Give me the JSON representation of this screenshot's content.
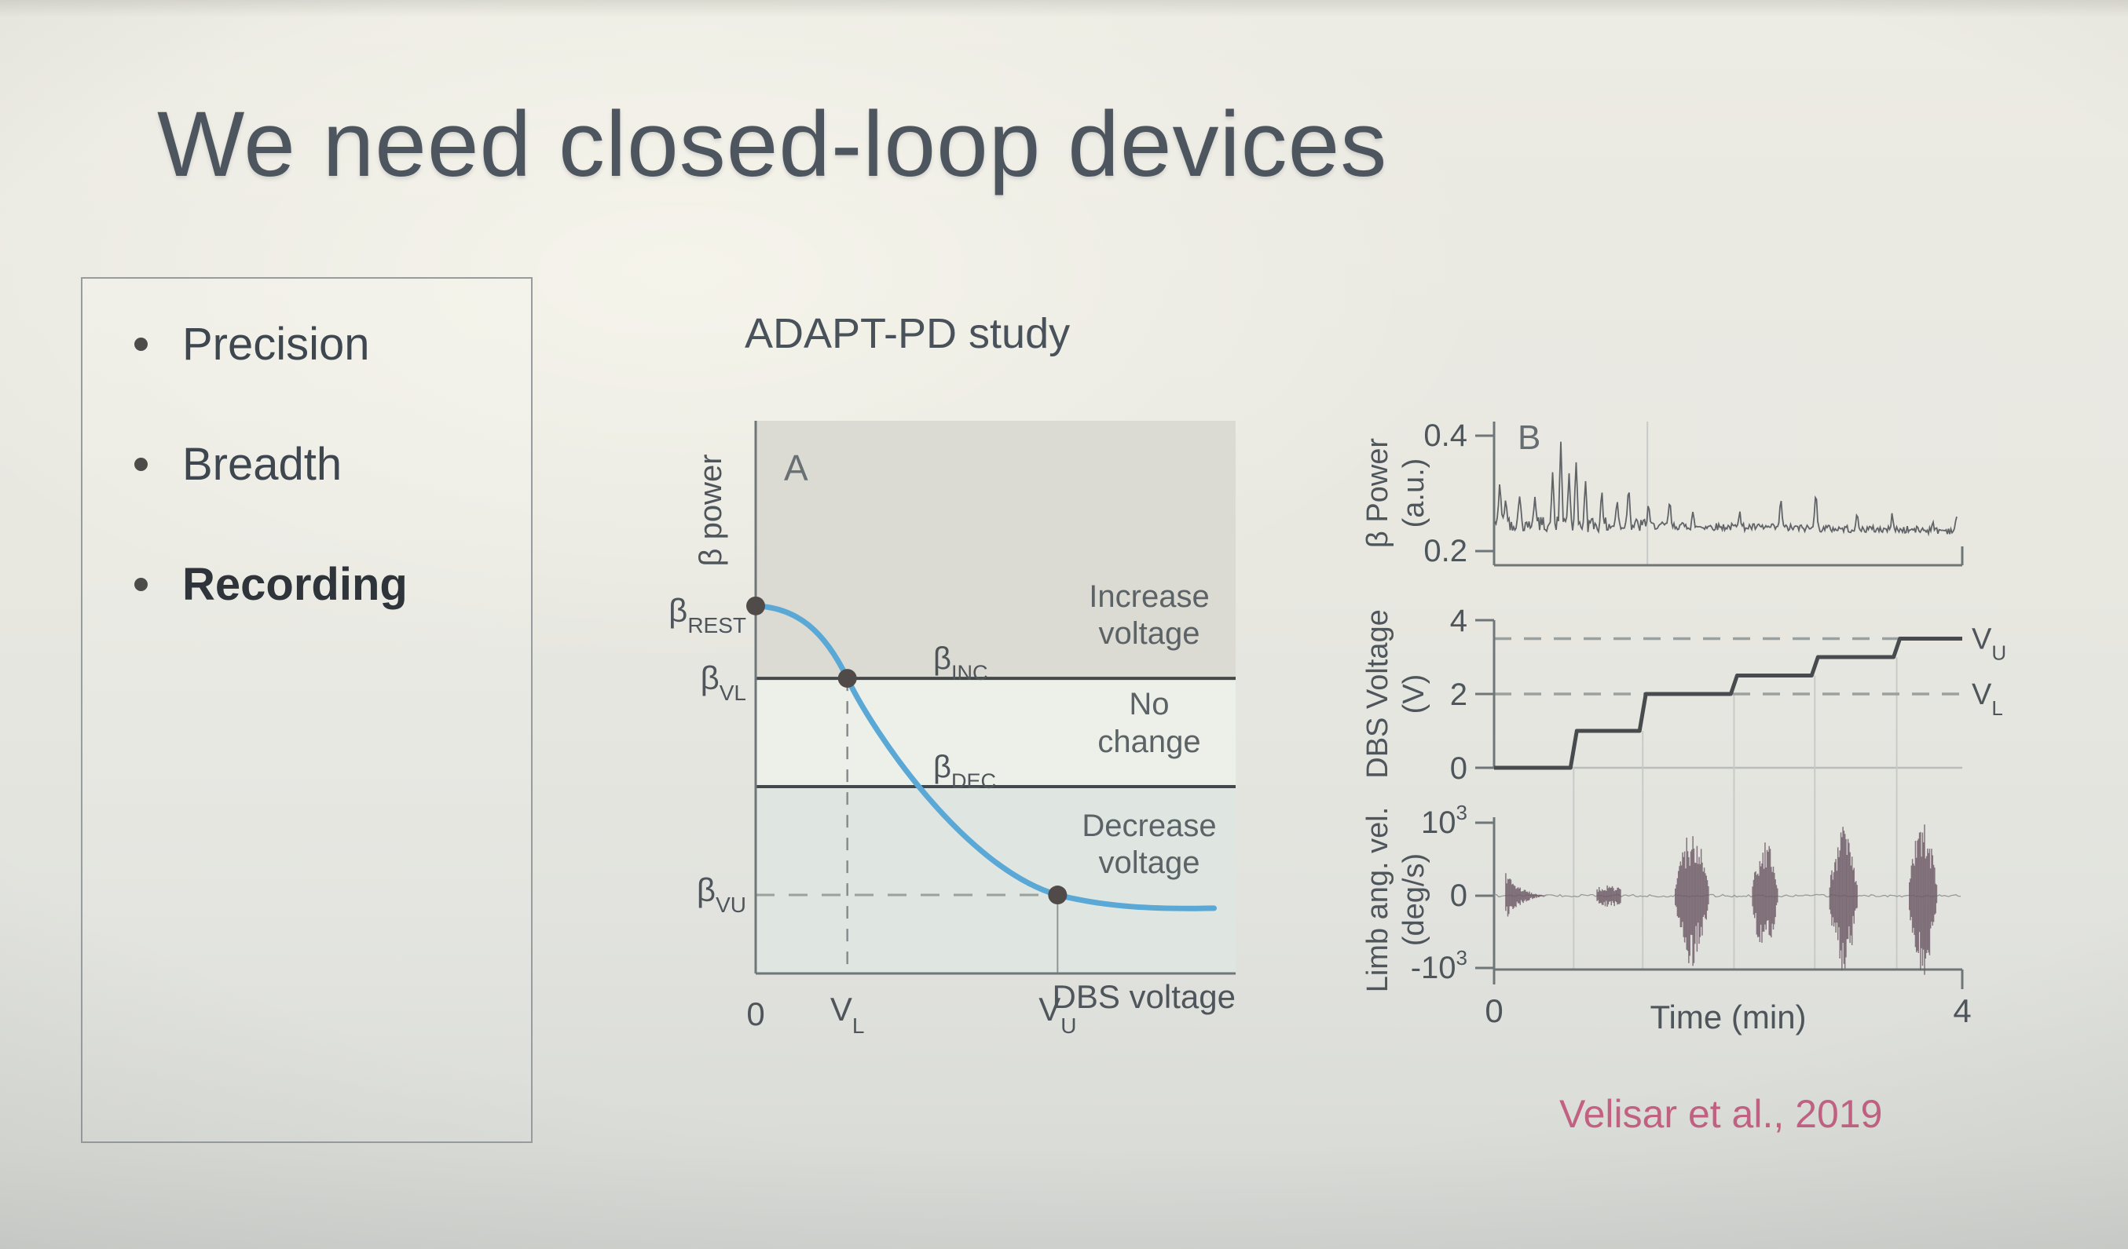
{
  "slide": {
    "title": "We need closed-loop devices"
  },
  "bullets": {
    "items": [
      {
        "label": "Precision"
      },
      {
        "label": "Breadth"
      },
      {
        "label": "Recording"
      }
    ]
  },
  "figure": {
    "heading": "ADAPT-PD study",
    "citation": "Velisar et al., 2019"
  },
  "colors": {
    "accent_blue": "#5aa8d6",
    "ink_dark": "#474b4e",
    "axis_grey": "#6f7678",
    "label_grey": "#4e565c",
    "region_top": "#dbdad3",
    "region_mid": "#edefe9",
    "region_bottom": "#dfe5e0",
    "dash_grey": "#9aa19e",
    "gridline": "#c7cbc8",
    "trace_grey": "#585d61",
    "burst": "#6e5b67",
    "point_dark": "#504b49",
    "citation_pink": "#c26183"
  },
  "chart_data": [
    {
      "id": "panel_a",
      "type": "line",
      "panel_label": "A",
      "ylabel": "β power",
      "xlabel": "DBS voltage",
      "x_ticks": [
        {
          "base": "0"
        },
        {
          "base": "V",
          "sub": "L"
        },
        {
          "base": "V",
          "sub": "U"
        }
      ],
      "y_labels": [
        {
          "base": "β",
          "sub": "REST"
        },
        {
          "base": "β",
          "sub": "VL"
        },
        {
          "base": "β",
          "sub": "VU"
        }
      ],
      "threshold_labels": [
        {
          "base": "β",
          "sub": "INC"
        },
        {
          "base": "β",
          "sub": "DEC"
        }
      ],
      "regions": [
        [
          "Increase",
          "voltage"
        ],
        [
          "No",
          "change"
        ],
        [
          "Decrease",
          "voltage"
        ]
      ],
      "norm": {
        "beta_rest_y": 0.335,
        "beta_inc_y": 0.466,
        "beta_dec_y": 0.662,
        "beta_vu_y": 0.858,
        "v_l_x": 0.191,
        "v_u_x": 0.629,
        "curve_end": [
          0.955,
          0.882
        ]
      },
      "curve_points": [
        [
          0,
          0.335
        ],
        [
          0.191,
          0.466
        ],
        [
          0.629,
          0.858
        ]
      ]
    },
    {
      "id": "panel_b_beta",
      "type": "line",
      "panel_label": "B",
      "ylabel_lines": [
        "β Power",
        "(a.u.)"
      ],
      "y_ticks": [
        0.4,
        0.2
      ],
      "x_range": [
        0,
        4
      ],
      "baseline": {
        "start": 0.2485,
        "end": 0.236
      },
      "noise": {
        "early": 0.013,
        "late": 0.0065,
        "early_until": 1.3
      },
      "spikes": [
        [
          0.05,
          0.33
        ],
        [
          0.1,
          0.3
        ],
        [
          0.22,
          0.31
        ],
        [
          0.35,
          0.3
        ],
        [
          0.5,
          0.34
        ],
        [
          0.57,
          0.4
        ],
        [
          0.64,
          0.34
        ],
        [
          0.7,
          0.37
        ],
        [
          0.78,
          0.33
        ],
        [
          0.92,
          0.31
        ],
        [
          1.05,
          0.3
        ],
        [
          1.15,
          0.32
        ],
        [
          1.32,
          0.29
        ],
        [
          1.5,
          0.3
        ],
        [
          1.7,
          0.28
        ],
        [
          2.1,
          0.27
        ],
        [
          2.45,
          0.3
        ],
        [
          2.75,
          0.31
        ],
        [
          3.1,
          0.27
        ],
        [
          3.4,
          0.27
        ],
        [
          3.75,
          0.26
        ],
        [
          3.95,
          0.27
        ]
      ],
      "gridline_times": [
        1.31
      ]
    },
    {
      "id": "panel_b_voltage",
      "type": "step",
      "ylabel_lines": [
        "DBS Voltage",
        "(V)"
      ],
      "y_ticks": [
        4,
        2,
        0
      ],
      "step_times": [
        0,
        0.68,
        1.27,
        2.05,
        2.74,
        3.44
      ],
      "step_levels": [
        0,
        1,
        2,
        2.5,
        3,
        3.5
      ],
      "t_end": 4,
      "dashed": [
        {
          "label": {
            "base": "V",
            "sub": "U"
          },
          "value": 3.5
        },
        {
          "label": {
            "base": "V",
            "sub": "L"
          },
          "value": 2
        }
      ]
    },
    {
      "id": "panel_b_limb",
      "type": "line",
      "ylabel_lines": [
        "Limb ang. vel.",
        "(deg/s)"
      ],
      "y_ticks": [
        {
          "base": "10",
          "sup": "3"
        },
        {
          "base": "0"
        },
        {
          "base": "-10",
          "sup": "3"
        }
      ],
      "y_range_units": 1000,
      "xlabel": "Time (min)",
      "x_ticks": [
        0,
        4
      ],
      "bursts": [
        {
          "t0": 0.1,
          "t1": 0.46,
          "peak": 0.3,
          "shape": "decay"
        },
        {
          "t0": 0.88,
          "t1": 1.08,
          "peak": 0.14,
          "shape": "blob"
        },
        {
          "t0": 1.54,
          "t1": 1.84,
          "peak": 0.85,
          "shape": "spindle"
        },
        {
          "t0": 2.2,
          "t1": 2.43,
          "peak": 0.72,
          "shape": "spindle"
        },
        {
          "t0": 2.86,
          "t1": 3.11,
          "peak": 0.92,
          "shape": "spindle"
        },
        {
          "t0": 3.54,
          "t1": 3.79,
          "peak": 0.97,
          "shape": "spindle"
        }
      ],
      "gridline_times": [
        0.68,
        1.27,
        2.05,
        2.74,
        3.44
      ]
    }
  ]
}
